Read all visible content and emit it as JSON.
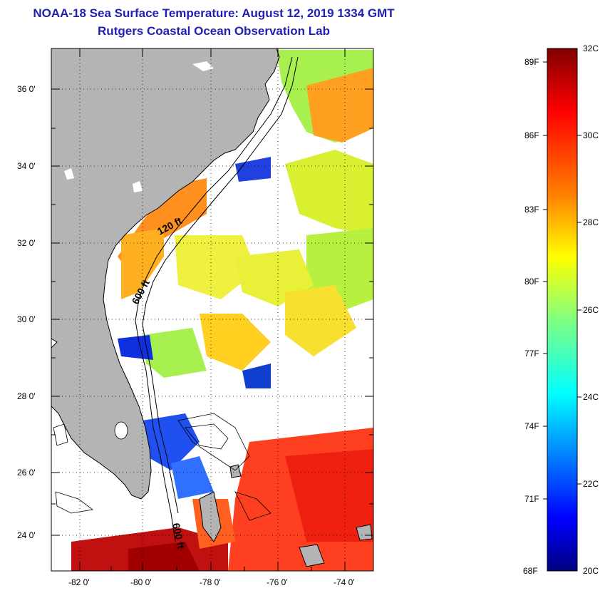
{
  "header": {
    "title": "NOAA-18 Sea Surface Temperature:  August 12, 2019 1334 GMT",
    "subtitle": "Rutgers Coastal Ocean Observation Lab"
  },
  "map": {
    "lat_labels": [
      "36 0'",
      "34 0'",
      "32 0'",
      "30 0'",
      "28 0'",
      "26 0'",
      "24 0'"
    ],
    "lon_labels": [
      "-82 0'",
      "-80 0'",
      "-78 0'",
      "-76 0'",
      "-74 0'"
    ],
    "isobath_labels": [
      "120 ft",
      "600 ft",
      "600 ft"
    ],
    "land_color": "#b4b4b4",
    "no_data_color": "#ffffff"
  },
  "colorbar": {
    "fahrenheit_labels": [
      "89F",
      "86F",
      "83F",
      "80F",
      "77F",
      "74F",
      "71F",
      "68F"
    ],
    "celsius_labels": [
      "32C",
      "30C",
      "28C",
      "26C",
      "24C",
      "22C",
      "20C"
    ],
    "scale_colors": [
      "#800000",
      "#ff0000",
      "#ff8000",
      "#ffff00",
      "#80ff80",
      "#00ffff",
      "#0080ff",
      "#0000ff",
      "#000080"
    ]
  }
}
